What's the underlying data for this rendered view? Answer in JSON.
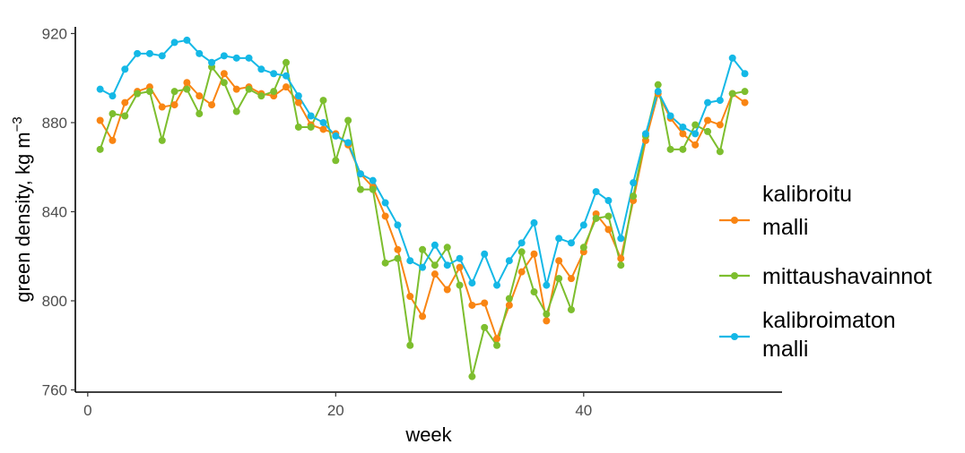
{
  "chart_data": {
    "type": "line",
    "xlabel": "week",
    "ylabel": "green density, kg m",
    "ylabel_superscript": "−3",
    "xlim": [
      -1,
      56
    ],
    "ylim": [
      759,
      923
    ],
    "xticks": [
      0,
      20,
      40
    ],
    "yticks": [
      760,
      800,
      840,
      880,
      920
    ],
    "grid": false,
    "legend_position": "right",
    "x": [
      1,
      2,
      3,
      4,
      5,
      6,
      7,
      8,
      9,
      10,
      11,
      12,
      13,
      14,
      15,
      16,
      17,
      18,
      19,
      20,
      21,
      22,
      23,
      24,
      25,
      26,
      27,
      28,
      29,
      30,
      31,
      32,
      33,
      34,
      35,
      36,
      37,
      38,
      39,
      40,
      41,
      42,
      43,
      44,
      45,
      46,
      47,
      48,
      49,
      50,
      51,
      52,
      53
    ],
    "series": [
      {
        "name_lines": [
          "kalibroitu",
          "malli"
        ],
        "color": "#F98513",
        "values": [
          881,
          872,
          889,
          894,
          896,
          887,
          888,
          898,
          892,
          888,
          902,
          895,
          896,
          893,
          892,
          896,
          889,
          879,
          877,
          875,
          870,
          857,
          851,
          838,
          823,
          802,
          793,
          812,
          805,
          815,
          798,
          799,
          783,
          798,
          813,
          821,
          791,
          818,
          810,
          822,
          839,
          832,
          819,
          845,
          872,
          893,
          882,
          875,
          870,
          881,
          879,
          893,
          889
        ]
      },
      {
        "name_lines": [
          "mittaushavainnot"
        ],
        "color": "#7DBE2E",
        "values": [
          868,
          884,
          883,
          893,
          894,
          872,
          894,
          895,
          884,
          905,
          898,
          885,
          895,
          892,
          894,
          907,
          878,
          878,
          890,
          863,
          881,
          850,
          850,
          817,
          819,
          780,
          823,
          816,
          824,
          807,
          766,
          788,
          780,
          801,
          822,
          804,
          794,
          810,
          796,
          824,
          837,
          838,
          816,
          847,
          874,
          897,
          868,
          868,
          879,
          876,
          867,
          893,
          894
        ]
      },
      {
        "name_lines": [
          "kalibroimaton",
          "malli"
        ],
        "color": "#14B8E6",
        "values": [
          895,
          892,
          904,
          911,
          911,
          910,
          916,
          917,
          911,
          907,
          910,
          909,
          909,
          904,
          902,
          901,
          892,
          883,
          880,
          874,
          871,
          857,
          854,
          844,
          834,
          818,
          815,
          825,
          816,
          819,
          808,
          821,
          807,
          818,
          826,
          835,
          807,
          828,
          826,
          834,
          849,
          845,
          828,
          853,
          875,
          894,
          883,
          878,
          875,
          889,
          890,
          909,
          902
        ]
      }
    ]
  }
}
